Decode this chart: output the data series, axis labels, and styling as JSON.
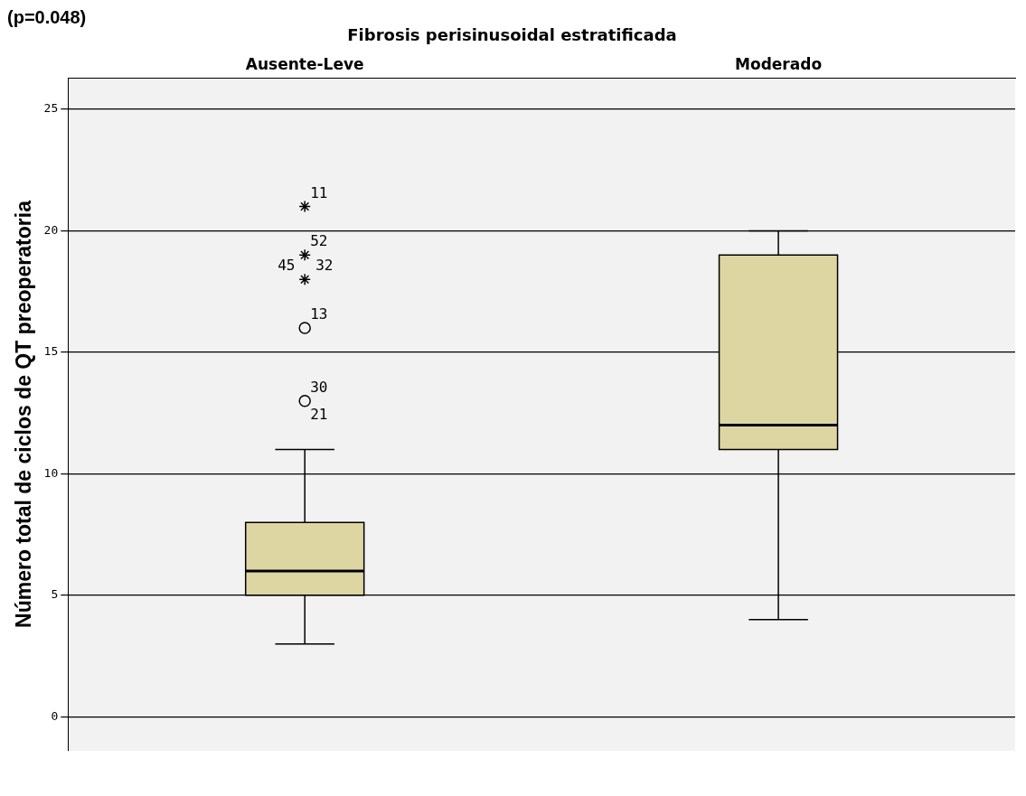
{
  "chart_data": {
    "type": "box",
    "title": "Fibrosis perisinusoidal estratificada",
    "ylabel": "Número total de ciclos de QT preoperatoria",
    "categories": [
      "Ausente-Leve",
      "Moderado"
    ],
    "color": "#ddd6a3",
    "boxes": [
      {
        "low": 3,
        "q1": 5,
        "median": 6,
        "q3": 8,
        "high": 11
      },
      {
        "low": 4,
        "q1": 11,
        "median": 12,
        "q3": 19,
        "high": 20
      }
    ],
    "series": [
      {
        "type": "scatter",
        "marker": "cross",
        "color": "#000000",
        "x": [
          "Ausente-Leve",
          "Ausente-Leve",
          "Ausente-Leve"
        ],
        "values": [
          21,
          19,
          18
        ]
      },
      {
        "type": "scatter",
        "marker": "circle",
        "color": "#000000",
        "x": [
          "Ausente-Leve",
          "Ausente-Leve"
        ],
        "values": [
          16,
          13
        ]
      }
    ],
    "ylim": [
      -1.4,
      26.3
    ],
    "yticks": [
      0,
      5,
      10,
      15,
      20,
      25
    ],
    "grid": "y",
    "legend": false,
    "annotations": [
      "(p=0.048)",
      {
        "text": "11",
        "x": "Ausente-Leve",
        "y": 21
      },
      {
        "text": "52",
        "x": "Ausente-Leve",
        "y": 19
      },
      {
        "text": "45",
        "x": "Ausente-Leve",
        "y": 18
      },
      {
        "text": "32",
        "x": "Ausente-Leve",
        "y": 18
      },
      {
        "text": "13",
        "x": "Ausente-Leve",
        "y": 16
      },
      {
        "text": "30",
        "x": "Ausente-Leve",
        "y": 13
      },
      {
        "text": "21",
        "x": "Ausente-Leve",
        "y": 13
      }
    ]
  }
}
